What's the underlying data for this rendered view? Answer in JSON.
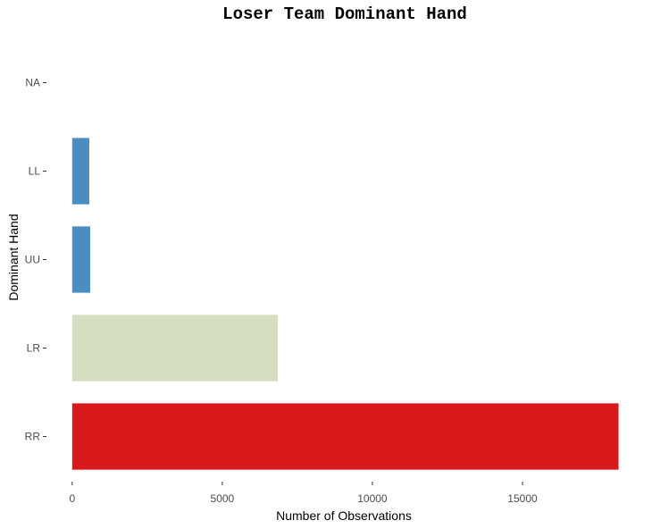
{
  "chart_data": {
    "type": "bar",
    "orientation": "horizontal",
    "title": "Loser Team Dominant Hand",
    "xlabel": "Number of Observations",
    "ylabel": "Dominant Hand",
    "categories": [
      "RR",
      "LR",
      "UU",
      "LL",
      "NA"
    ],
    "values": [
      18200,
      6850,
      600,
      570,
      0
    ],
    "colors": [
      "#d7191c",
      "#d5dec0",
      "#4a8ec1",
      "#4a8ec1",
      "#4a8ec1"
    ],
    "xlim": [
      -500,
      18600
    ],
    "xticks": [
      0,
      5000,
      10000,
      15000
    ],
    "xtick_labels": [
      "0",
      "5000",
      "10000",
      "15000"
    ],
    "grid": false,
    "legend": "none"
  }
}
